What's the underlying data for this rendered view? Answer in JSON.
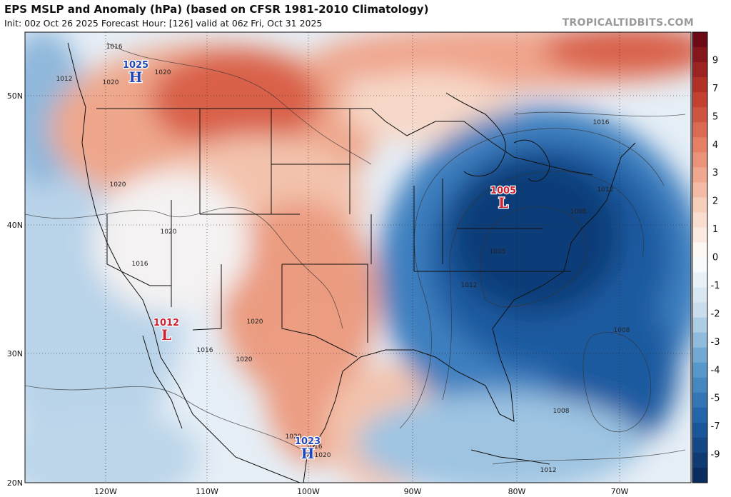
{
  "header": {
    "title": "EPS MSLP and Anomaly (hPa) (based on CFSR 1981-2010 Climatology)",
    "subtitle": "Init: 00z Oct 26 2025   Forecast Hour: [126]   valid at 06z Fri, Oct 31 2025",
    "credit": "TROPICALTIDBITS.COM"
  },
  "axes": {
    "longitude_labels": [
      "120W",
      "110W",
      "100W",
      "90W",
      "80W",
      "70W"
    ],
    "latitude_labels": [
      "50N",
      "40N",
      "30N",
      "20N"
    ]
  },
  "colorbar": {
    "labels": [
      "9",
      "7",
      "5",
      "4",
      "3",
      "2",
      "1",
      "0",
      "-1",
      "-2",
      "-3",
      "-4",
      "-5",
      "-7",
      "-9"
    ],
    "colors": {
      "max": "#6e0a16",
      "high": "#c0392b",
      "mid_high": "#e8846a",
      "low_high": "#f6cdb8",
      "neutral": "#ffffff",
      "low_low": "#c7dcec",
      "mid_low": "#5b9ccd",
      "low": "#1c5fa6",
      "min": "#0b2c5e"
    }
  },
  "pressure_centers": [
    {
      "type": "H",
      "value": "1025",
      "color": "#2347b8"
    },
    {
      "type": "L",
      "value": "1012",
      "color": "#d0202f"
    },
    {
      "type": "L",
      "value": "1005",
      "color": "#d0202f"
    },
    {
      "type": "H",
      "value": "1023",
      "color": "#2347b8"
    }
  ],
  "contour_labels": [
    "1016",
    "1012",
    "1020",
    "1020",
    "1020",
    "1020",
    "1016",
    "1020",
    "1016",
    "1020",
    "1016",
    "1012",
    "1008",
    "1008",
    "1005",
    "1012",
    "1008",
    "1012",
    "1020",
    "1016",
    "1020"
  ]
}
